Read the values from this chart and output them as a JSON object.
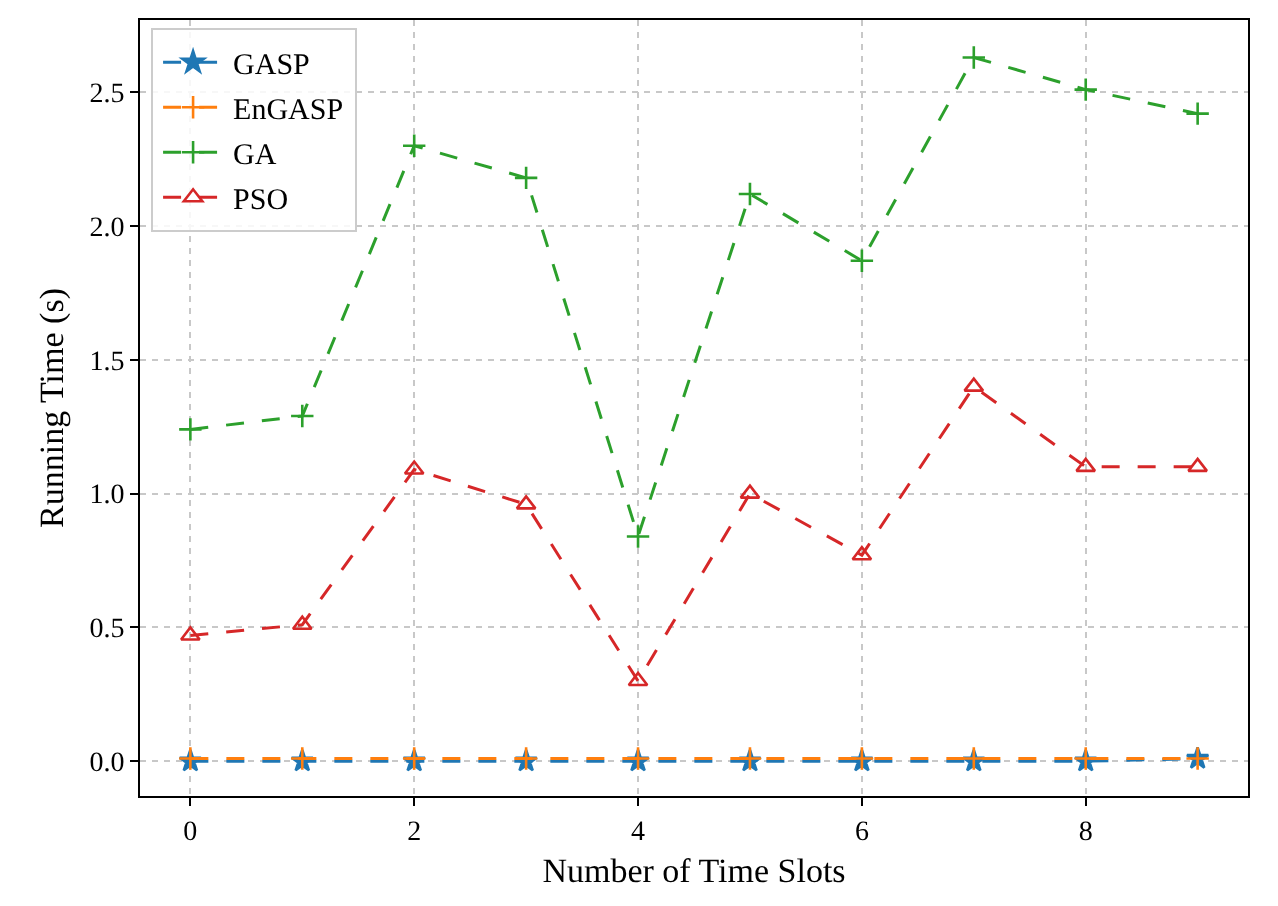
{
  "chart_data": {
    "type": "line",
    "xlabel": "Number of Time Slots",
    "ylabel": "Running Time (s)",
    "x": [
      0,
      1,
      2,
      3,
      4,
      5,
      6,
      7,
      8,
      9
    ],
    "xlim": [
      -0.45,
      9.45
    ],
    "xticks": [
      0,
      2,
      4,
      6,
      8
    ],
    "ylim": [
      -0.13,
      2.77
    ],
    "yticks": [
      {
        "value": 0,
        "label": "0.0"
      },
      0.5,
      {
        "value": 1,
        "label": "1.0"
      },
      1.5,
      {
        "value": 2,
        "label": "2.0"
      },
      2.5
    ],
    "grid": true,
    "legend": "top left",
    "line_style": "dashed",
    "series": [
      {
        "name": "GASP",
        "color": "#1f77b4",
        "marker": "star",
        "values": [
          0.0,
          0.0,
          0.0,
          0.0,
          0.0,
          0.0,
          0.0,
          0.0,
          0.0,
          0.01
        ]
      },
      {
        "name": "EnGASP",
        "color": "#ff7f0e",
        "marker": "cross",
        "values": [
          0.01,
          0.01,
          0.01,
          0.01,
          0.01,
          0.01,
          0.01,
          0.01,
          0.01,
          0.01
        ]
      },
      {
        "name": "GA",
        "color": "#2ca02c",
        "marker": "cross",
        "values": [
          1.24,
          1.29,
          2.3,
          2.18,
          0.84,
          2.12,
          1.87,
          2.63,
          2.51,
          2.42
        ]
      },
      {
        "name": "PSO",
        "color": "#d62728",
        "marker": "triangle",
        "values": [
          0.47,
          0.51,
          1.09,
          0.96,
          0.3,
          1.0,
          0.77,
          1.4,
          1.1,
          1.1
        ]
      }
    ]
  }
}
